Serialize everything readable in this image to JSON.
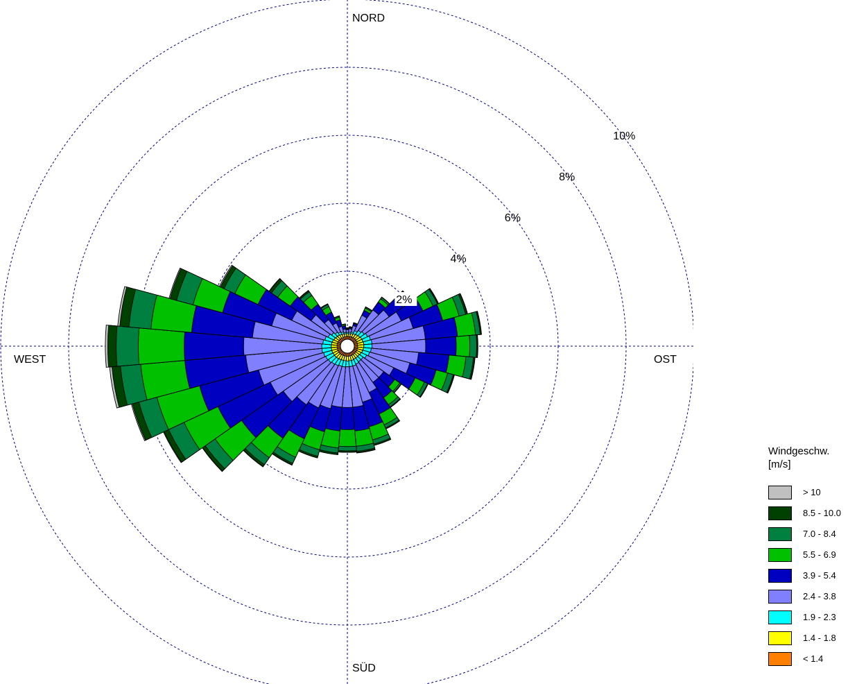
{
  "chart_data": {
    "type": "windrose",
    "direction_labels": {
      "north": "NORD",
      "east": "OST",
      "south": "SÜD",
      "west": "WEST"
    },
    "radial_ticks": [
      {
        "value": 2,
        "label": "2%"
      },
      {
        "value": 4,
        "label": "4%"
      },
      {
        "value": 6,
        "label": "6%"
      },
      {
        "value": 8,
        "label": "8%"
      },
      {
        "value": 10,
        "label": "10%"
      }
    ],
    "radial_max": 10,
    "legend": {
      "title_line1": "Windgeschw.",
      "title_line2": "[m/s]",
      "position": "bottom-right"
    },
    "speed_bins": [
      {
        "label": "< 1.4",
        "color": "#ff8000"
      },
      {
        "label": "1.4 - 1.8",
        "color": "#ffff00"
      },
      {
        "label": "1.9 - 2.3",
        "color": "#00ffff"
      },
      {
        "label": "2.4 - 3.8",
        "color": "#8080ff"
      },
      {
        "label": "3.9 - 5.4",
        "color": "#0000c0"
      },
      {
        "label": "5.5 - 6.9",
        "color": "#00c000"
      },
      {
        "label": "7.0 - 8.4",
        "color": "#008040"
      },
      {
        "label": "8.5 - 10.0",
        "color": "#004000"
      },
      {
        "label": "> 10",
        "color": "#c0c0c0"
      }
    ],
    "sector_width_deg": 10,
    "directions_deg": [
      0,
      10,
      20,
      30,
      40,
      50,
      60,
      70,
      80,
      90,
      100,
      110,
      120,
      130,
      140,
      150,
      160,
      170,
      180,
      190,
      200,
      210,
      220,
      230,
      240,
      250,
      260,
      270,
      280,
      290,
      300,
      310,
      320,
      330,
      340,
      350
    ],
    "cumulative_percent": [
      [
        0.08,
        0.16,
        0.2,
        0.28,
        0.3,
        0.32,
        0.33,
        0.33,
        0.34
      ],
      [
        0.08,
        0.16,
        0.21,
        0.31,
        0.34,
        0.36,
        0.37,
        0.37,
        0.37
      ],
      [
        0.09,
        0.18,
        0.23,
        0.42,
        0.48,
        0.5,
        0.51,
        0.51,
        0.51
      ],
      [
        0.09,
        0.2,
        0.3,
        0.8,
        0.96,
        1.03,
        1.06,
        1.07,
        1.07
      ],
      [
        0.1,
        0.22,
        0.36,
        1.1,
        1.38,
        1.5,
        1.55,
        1.56,
        1.56
      ],
      [
        0.1,
        0.24,
        0.4,
        1.3,
        1.8,
        2.0,
        2.08,
        2.1,
        2.1
      ],
      [
        0.1,
        0.26,
        0.45,
        1.55,
        2.25,
        2.58,
        2.72,
        2.75,
        2.76
      ],
      [
        0.1,
        0.27,
        0.5,
        1.8,
        2.7,
        3.2,
        3.4,
        3.45,
        3.46
      ],
      [
        0.1,
        0.28,
        0.52,
        2.1,
        3.05,
        3.58,
        3.72,
        3.75,
        3.76
      ],
      [
        0.1,
        0.28,
        0.52,
        2.1,
        3.0,
        3.4,
        3.6,
        3.63,
        3.64
      ],
      [
        0.1,
        0.27,
        0.5,
        1.9,
        2.8,
        3.3,
        3.52,
        3.56,
        3.57
      ],
      [
        0.1,
        0.26,
        0.47,
        1.7,
        2.5,
        2.85,
        3.02,
        3.05,
        3.06
      ],
      [
        0.1,
        0.24,
        0.42,
        1.3,
        2.0,
        2.3,
        2.4,
        2.42,
        2.42
      ],
      [
        0.09,
        0.22,
        0.36,
        1.1,
        1.5,
        1.68,
        1.73,
        1.74,
        1.74
      ],
      [
        0.09,
        0.22,
        0.36,
        1.1,
        1.65,
        1.9,
        1.98,
        2.0,
        2.0
      ],
      [
        0.09,
        0.22,
        0.38,
        1.3,
        2.0,
        2.35,
        2.45,
        2.48,
        2.48
      ],
      [
        0.09,
        0.23,
        0.4,
        1.5,
        2.25,
        2.65,
        2.78,
        2.82,
        2.82
      ],
      [
        0.09,
        0.23,
        0.4,
        1.6,
        2.3,
        2.75,
        2.9,
        2.94,
        2.95
      ],
      [
        0.09,
        0.23,
        0.4,
        1.6,
        2.25,
        2.75,
        2.88,
        2.92,
        2.92
      ],
      [
        0.09,
        0.23,
        0.41,
        1.6,
        2.3,
        2.8,
        2.95,
        3.0,
        3.0
      ],
      [
        0.09,
        0.23,
        0.41,
        1.7,
        2.4,
        2.95,
        3.15,
        3.2,
        3.2
      ],
      [
        0.09,
        0.24,
        0.43,
        1.8,
        2.8,
        3.4,
        3.6,
        3.65,
        3.66
      ],
      [
        0.1,
        0.25,
        0.45,
        1.9,
        3.1,
        3.8,
        4.05,
        4.12,
        4.13
      ],
      [
        0.1,
        0.26,
        0.48,
        2.1,
        3.6,
        4.55,
        4.9,
        5.0,
        5.01
      ],
      [
        0.1,
        0.26,
        0.5,
        2.3,
        4.0,
        5.1,
        5.6,
        5.75,
        5.77
      ],
      [
        0.1,
        0.27,
        0.52,
        2.5,
        4.3,
        5.6,
        6.15,
        6.35,
        6.38
      ],
      [
        0.1,
        0.27,
        0.55,
        2.8,
        4.6,
        5.9,
        6.5,
        6.75,
        6.82
      ],
      [
        0.1,
        0.27,
        0.55,
        2.85,
        4.6,
        5.95,
        6.6,
        6.85,
        6.92
      ],
      [
        0.1,
        0.26,
        0.52,
        2.6,
        4.4,
        5.6,
        6.25,
        6.52,
        6.58
      ],
      [
        0.1,
        0.25,
        0.48,
        2.1,
        3.6,
        4.5,
        5.0,
        5.2,
        5.23
      ],
      [
        0.09,
        0.23,
        0.42,
        1.6,
        2.7,
        3.45,
        3.8,
        3.92,
        3.95
      ],
      [
        0.09,
        0.21,
        0.36,
        1.1,
        1.85,
        2.3,
        2.52,
        2.6,
        2.61
      ],
      [
        0.09,
        0.2,
        0.3,
        0.75,
        1.3,
        1.62,
        1.75,
        1.79,
        1.8
      ],
      [
        0.08,
        0.18,
        0.26,
        0.55,
        0.9,
        1.08,
        1.15,
        1.17,
        1.17
      ],
      [
        0.08,
        0.17,
        0.23,
        0.4,
        0.6,
        0.68,
        0.71,
        0.72,
        0.72
      ],
      [
        0.08,
        0.16,
        0.2,
        0.3,
        0.4,
        0.44,
        0.45,
        0.45,
        0.45
      ]
    ]
  }
}
